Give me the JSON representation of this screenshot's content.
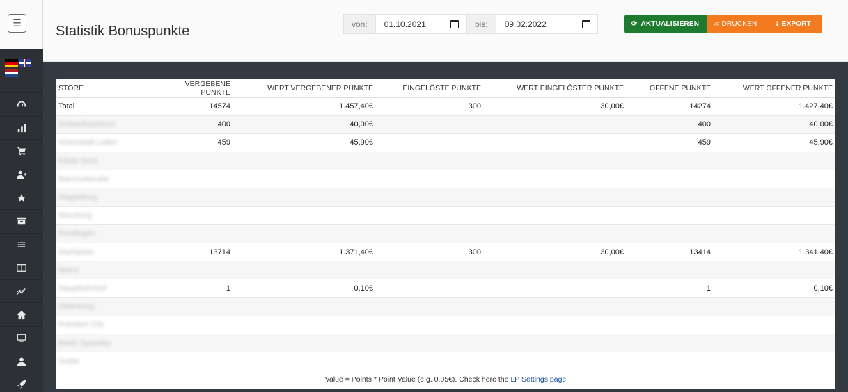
{
  "header": {
    "title": "Statistik Bonuspunkte",
    "from_label": "von:",
    "from_value": "01.10.2021",
    "to_label": "bis:",
    "to_value": "09.02.2022",
    "refresh_label": "AKTUALISIEREN",
    "print_label": "DRUCKEN",
    "export_label": "EXPORT"
  },
  "sidebar": {
    "items": [
      "dashboard-icon",
      "chart-icon",
      "cart-icon",
      "add-user-icon",
      "star-icon",
      "archive-icon",
      "list-icon",
      "book-icon",
      "trend-icon",
      "home-icon",
      "monitor-icon",
      "user-icon",
      "rocket-icon"
    ]
  },
  "table": {
    "columns": [
      "STORE",
      "VERGEBENE PUNKTE",
      "WERT VERGEBENER PUNKTE",
      "EINGELÖSTE PUNKTE",
      "WERT EINGELÖSTER PUNKTE",
      "OFFENE PUNKTE",
      "WERT OFFENER PUNKTE"
    ],
    "rows": [
      {
        "store": "Total",
        "blurred": false,
        "given": "14574",
        "given_value": "1.457,40€",
        "redeemed": "300",
        "redeemed_value": "30,00€",
        "open": "14274",
        "open_value": "1.427,40€"
      },
      {
        "store": "Einkaufszentrum",
        "blurred": true,
        "given": "400",
        "given_value": "40,00€",
        "redeemed": "",
        "redeemed_value": "",
        "open": "400",
        "open_value": "40,00€"
      },
      {
        "store": "Innenstadt Laden",
        "blurred": true,
        "given": "459",
        "given_value": "45,90€",
        "redeemed": "",
        "redeemed_value": "",
        "open": "459",
        "open_value": "45,90€"
      },
      {
        "store": "Filiale Nord",
        "blurred": true,
        "given": "",
        "given_value": "",
        "redeemed": "",
        "redeemed_value": "",
        "open": "",
        "open_value": ""
      },
      {
        "store": "Bahnhofstraße",
        "blurred": true,
        "given": "",
        "given_value": "",
        "redeemed": "",
        "redeemed_value": "",
        "open": "",
        "open_value": ""
      },
      {
        "store": "Magdeburg",
        "blurred": true,
        "given": "",
        "given_value": "",
        "redeemed": "",
        "redeemed_value": "",
        "open": "",
        "open_value": ""
      },
      {
        "store": "Würzburg",
        "blurred": true,
        "given": "",
        "given_value": "",
        "redeemed": "",
        "redeemed_value": "",
        "open": "",
        "open_value": ""
      },
      {
        "store": "Reutlingen",
        "blurred": true,
        "given": "",
        "given_value": "",
        "redeemed": "",
        "redeemed_value": "",
        "open": "",
        "open_value": ""
      },
      {
        "store": "Marktplatz",
        "blurred": true,
        "given": "13714",
        "given_value": "1.371,40€",
        "redeemed": "300",
        "redeemed_value": "30,00€",
        "open": "13414",
        "open_value": "1.341,40€"
      },
      {
        "store": "Mainz",
        "blurred": true,
        "given": "",
        "given_value": "",
        "redeemed": "",
        "redeemed_value": "",
        "open": "",
        "open_value": ""
      },
      {
        "store": "Hauptbahnhof",
        "blurred": true,
        "given": "1",
        "given_value": "0,10€",
        "redeemed": "",
        "redeemed_value": "",
        "open": "1",
        "open_value": "0,10€"
      },
      {
        "store": "Oldenburg",
        "blurred": true,
        "given": "",
        "given_value": "",
        "redeemed": "",
        "redeemed_value": "",
        "open": "",
        "open_value": ""
      },
      {
        "store": "Potsdam City",
        "blurred": true,
        "given": "",
        "given_value": "",
        "redeemed": "",
        "redeemed_value": "",
        "open": "",
        "open_value": ""
      },
      {
        "store": "Berlin Spandau",
        "blurred": true,
        "given": "",
        "given_value": "",
        "redeemed": "",
        "redeemed_value": "",
        "open": "",
        "open_value": ""
      },
      {
        "store": "Outlet",
        "blurred": true,
        "given": "",
        "given_value": "",
        "redeemed": "",
        "redeemed_value": "",
        "open": "",
        "open_value": ""
      }
    ]
  },
  "footer": {
    "note": "Value = Points * Point Value (e.g. 0.05€). Check here the",
    "link": "LP Settings page"
  }
}
